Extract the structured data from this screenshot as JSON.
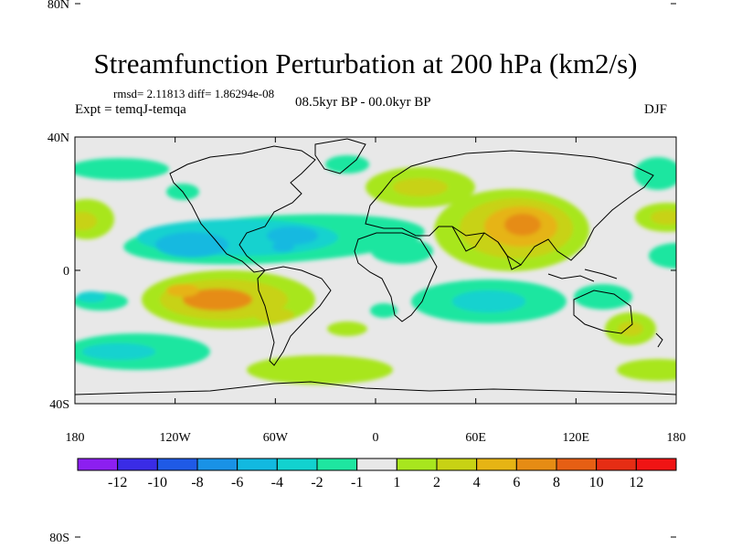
{
  "title": "Streamfunction Perturbation at 200 hPa (km2/s)",
  "stats": "rmsd= 2.11813 diff= 1.86294e-08",
  "experiment": "Expt = temqJ-temqa",
  "period": "08.5kyr BP - 00.0kyr BP",
  "season": "DJF",
  "axes": {
    "y_ticks": [
      {
        "value": 80,
        "label": "80N"
      },
      {
        "value": 40,
        "label": "40N"
      },
      {
        "value": 0,
        "label": "0"
      },
      {
        "value": -40,
        "label": "40S"
      },
      {
        "value": -80,
        "label": "80S"
      }
    ],
    "x_ticks": [
      {
        "value": -180,
        "label": "180"
      },
      {
        "value": -120,
        "label": "120W"
      },
      {
        "value": -60,
        "label": "60W"
      },
      {
        "value": 0,
        "label": "0"
      },
      {
        "value": 60,
        "label": "60E"
      },
      {
        "value": 120,
        "label": "120E"
      },
      {
        "value": 180,
        "label": "180"
      }
    ]
  },
  "colorbar": {
    "labels": [
      "-12",
      "-10",
      "-8",
      "-6",
      "-4",
      "-2",
      "-1",
      "1",
      "2",
      "4",
      "6",
      "8",
      "10",
      "12"
    ],
    "colors": [
      "#8c1ff0",
      "#3a2ce6",
      "#1f5ae6",
      "#1992e6",
      "#12b9e0",
      "#12d2cf",
      "#1ee6a0",
      "#e8e8e8",
      "#a8e61e",
      "#c8d214",
      "#e6b414",
      "#e68c14",
      "#e65f14",
      "#e62d14",
      "#f01414"
    ]
  }
}
